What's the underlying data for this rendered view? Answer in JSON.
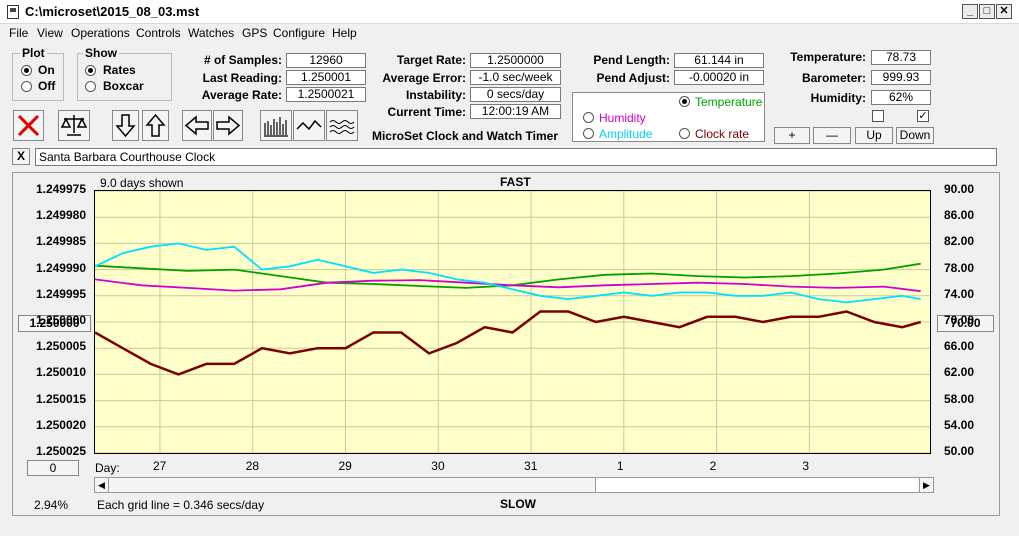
{
  "window": {
    "title": "C:\\microset\\2015_08_03.mst",
    "min": "_",
    "max": "□",
    "close": "✕"
  },
  "menu": [
    "File",
    "View",
    "Operations",
    "Controls",
    "Watches",
    "GPS",
    "Configure",
    "Help"
  ],
  "plot_group": {
    "title": "Plot",
    "on": "On",
    "off": "Off",
    "selected": "On"
  },
  "show_group": {
    "title": "Show",
    "rates": "Rates",
    "boxcar": "Boxcar",
    "selected": "Rates"
  },
  "stats": {
    "samples_label": "# of Samples:",
    "samples": "12960",
    "last_label": "Last Reading:",
    "last": "1.250001",
    "avg_rate_label": "Average Rate:",
    "avg_rate": "1.2500021",
    "target_label": "Target Rate:",
    "target": "1.2500000",
    "avg_err_label": "Average Error:",
    "avg_err": "-1.0 sec/week",
    "instab_label": "Instability:",
    "instab": "0 secs/day",
    "time_label": "Current Time:",
    "time": "12:00:19 AM",
    "app_name": "MicroSet Clock and Watch Timer",
    "pend_len_label": "Pend Length:",
    "pend_len": "61.144 in",
    "pend_adj_label": "Pend Adjust:",
    "pend_adj": "-0.00020 in",
    "temp_label": "Temperature:",
    "temp": "78.73",
    "baro_label": "Barometer:",
    "baro": "999.93",
    "hum_label": "Humidity:",
    "hum": "62%"
  },
  "sensor_options": {
    "temperature": "Temperature",
    "humidity": "Humidity",
    "amplitude": "Amplitude",
    "clock_rate": "Clock rate",
    "selected": "Temperature"
  },
  "scale_buttons": {
    "plus": "+",
    "minus": "—",
    "up": "Up",
    "down": "Down"
  },
  "colors": {
    "temperature": "#00a000",
    "humidity": "#d000d0",
    "amplitude": "#00e0ff",
    "rate": "#7a0000",
    "plot_bg": "#ffffc9"
  },
  "description": "Santa Barbara Courthouse Clock",
  "clear_btn": "X",
  "chart_labels": {
    "days_shown": "9.0 days shown",
    "top": "FAST",
    "bottom": "SLOW",
    "day_label": "Day:",
    "grid_info": "Each grid line = 0.346 secs/day",
    "percent": "2.94%",
    "left_center": "1.250000",
    "right_center": "70.00",
    "bottom_btn": "0"
  },
  "chart_data": {
    "type": "line",
    "x_ticks": [
      "27",
      "28",
      "29",
      "30",
      "31",
      "1",
      "2",
      "3"
    ],
    "left_axis": [
      "1.249975",
      "1.249980",
      "1.249985",
      "1.249990",
      "1.249995",
      "1.250000",
      "1.250005",
      "1.250010",
      "1.250015",
      "1.250020",
      "1.250025"
    ],
    "right_axis": [
      "90.00",
      "86.00",
      "82.00",
      "78.00",
      "74.00",
      "70.00",
      "66.00",
      "62.00",
      "58.00",
      "54.00",
      "50.00"
    ],
    "x_range": [
      26.3,
      35.3
    ],
    "y_left_range": [
      1.249975,
      1.250025
    ],
    "y_right_range": [
      50,
      90
    ],
    "series": [
      {
        "name": "Temperature",
        "axis": "right",
        "color": "#00a000",
        "x": [
          26.3,
          26.8,
          27.3,
          27.8,
          28.3,
          28.8,
          29.3,
          29.8,
          30.3,
          30.8,
          31.3,
          31.8,
          32.3,
          32.8,
          33.3,
          33.8,
          34.3,
          34.8,
          35.2
        ],
        "y": [
          78.6,
          78.2,
          77.8,
          78.0,
          77.0,
          76.0,
          75.8,
          75.5,
          75.2,
          75.6,
          76.5,
          77.2,
          77.4,
          77.0,
          76.8,
          77.0,
          77.4,
          78.0,
          78.9
        ]
      },
      {
        "name": "Humidity",
        "axis": "right",
        "color": "#d000d0",
        "x": [
          26.3,
          26.8,
          27.3,
          27.8,
          28.3,
          28.8,
          29.3,
          29.8,
          30.3,
          30.8,
          31.3,
          31.8,
          32.3,
          32.8,
          33.3,
          33.8,
          34.3,
          34.8,
          35.2
        ],
        "y": [
          76.5,
          75.6,
          75.2,
          74.8,
          75.0,
          76.0,
          76.3,
          76.4,
          76.0,
          75.6,
          75.3,
          75.6,
          75.8,
          76.0,
          75.8,
          75.4,
          75.2,
          75.4,
          74.7
        ]
      },
      {
        "name": "Amplitude",
        "axis": "right",
        "color": "#00e0ff",
        "x": [
          26.3,
          26.6,
          26.9,
          27.2,
          27.5,
          27.8,
          28.1,
          28.4,
          28.7,
          29.0,
          29.3,
          29.6,
          29.9,
          30.2,
          30.5,
          30.8,
          31.1,
          31.4,
          31.7,
          32.0,
          32.3,
          32.6,
          32.9,
          33.2,
          33.5,
          33.8,
          34.1,
          34.4,
          34.7,
          35.0,
          35.2
        ],
        "y": [
          78.5,
          80.5,
          81.5,
          82.0,
          81.0,
          81.5,
          78.0,
          78.5,
          79.5,
          78.5,
          77.5,
          78.0,
          77.5,
          76.5,
          76.0,
          75.0,
          74.0,
          73.5,
          74.0,
          74.5,
          74.0,
          74.5,
          74.5,
          74.0,
          74.0,
          74.5,
          73.5,
          73.0,
          73.5,
          74.0,
          73.5
        ]
      },
      {
        "name": "Clock rate",
        "axis": "left",
        "color": "#7a0000",
        "x": [
          26.3,
          26.6,
          26.9,
          27.2,
          27.5,
          27.8,
          28.1,
          28.4,
          28.7,
          29.0,
          29.3,
          29.6,
          29.9,
          30.2,
          30.5,
          30.8,
          31.1,
          31.4,
          31.7,
          32.0,
          32.3,
          32.6,
          32.9,
          33.2,
          33.5,
          33.8,
          34.1,
          34.4,
          34.7,
          35.0,
          35.2
        ],
        "y": [
          1.250002,
          1.250005,
          1.250008,
          1.25001,
          1.250008,
          1.250008,
          1.250005,
          1.250006,
          1.250005,
          1.250005,
          1.250002,
          1.250002,
          1.250006,
          1.250004,
          1.250001,
          1.250002,
          1.249998,
          1.249998,
          1.25,
          1.249999,
          1.25,
          1.250001,
          1.249999,
          1.249999,
          1.25,
          1.249999,
          1.249999,
          1.249998,
          1.25,
          1.250001,
          1.25
        ]
      }
    ]
  }
}
